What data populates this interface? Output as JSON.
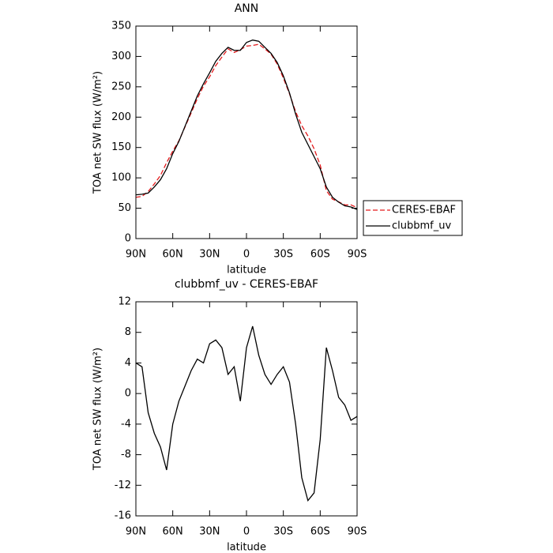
{
  "chart_data": [
    {
      "type": "line",
      "title": "ANN",
      "x_label": "latitude",
      "y_label": "TOA net SW flux (W/m²)",
      "x": [
        90,
        85,
        80,
        75,
        70,
        65,
        60,
        55,
        50,
        45,
        40,
        35,
        30,
        25,
        20,
        15,
        10,
        5,
        0,
        -5,
        -10,
        -15,
        -20,
        -25,
        -30,
        -35,
        -40,
        -45,
        -50,
        -55,
        -60,
        -65,
        -70,
        -75,
        -80,
        -85,
        -90
      ],
      "xlim": [
        90,
        -90
      ],
      "xticks": [
        {
          "value": 90,
          "label": "90N"
        },
        {
          "value": 60,
          "label": "60N"
        },
        {
          "value": 30,
          "label": "30N"
        },
        0,
        {
          "value": -30,
          "label": "30S"
        },
        {
          "value": -60,
          "label": "60S"
        },
        {
          "value": -90,
          "label": "90S"
        }
      ],
      "ylim": [
        0,
        350
      ],
      "yticks": [
        0,
        50,
        100,
        150,
        200,
        250,
        300,
        350
      ],
      "legend": "right",
      "series": [
        {
          "name": "CERES-EBAF",
          "color": "#e41a1c",
          "line_style": "dashed",
          "values": [
            68,
            69.5,
            77.5,
            90,
            104,
            125,
            144,
            161,
            184,
            207,
            230.5,
            251,
            266.5,
            285,
            299,
            312.5,
            306.5,
            311,
            317,
            318,
            320,
            312.5,
            303.8,
            287.5,
            264.5,
            238.5,
            209,
            186,
            169,
            148,
            121,
            79,
            65,
            60.5,
            55.5,
            55.5,
            51
          ]
        },
        {
          "name": "clubbmf_uv",
          "color": "#000000",
          "line_style": "solid",
          "values": [
            72,
            73,
            75,
            85,
            97,
            115,
            140,
            160,
            185,
            210,
            235,
            255,
            273,
            292,
            305,
            315,
            310,
            310,
            323,
            327,
            325,
            315,
            305,
            290,
            268,
            240,
            205,
            175,
            155,
            135,
            115,
            85,
            68,
            60,
            54,
            52,
            48
          ]
        }
      ]
    },
    {
      "type": "line",
      "title": "clubbmf_uv - CERES-EBAF",
      "x_label": "latitude",
      "y_label": "TOA net SW flux (W/m²)",
      "x": [
        90,
        85,
        80,
        75,
        70,
        65,
        60,
        55,
        50,
        45,
        40,
        35,
        30,
        25,
        20,
        15,
        10,
        5,
        0,
        -5,
        -10,
        -15,
        -20,
        -25,
        -30,
        -35,
        -40,
        -45,
        -50,
        -55,
        -60,
        -65,
        -70,
        -75,
        -80,
        -85,
        -90
      ],
      "xlim": [
        90,
        -90
      ],
      "xticks": [
        {
          "value": 90,
          "label": "90N"
        },
        {
          "value": 60,
          "label": "60N"
        },
        {
          "value": 30,
          "label": "30N"
        },
        0,
        {
          "value": -30,
          "label": "30S"
        },
        {
          "value": -60,
          "label": "60S"
        },
        {
          "value": -90,
          "label": "90S"
        }
      ],
      "ylim": [
        -16,
        12
      ],
      "yticks": [
        -16,
        -12,
        -8,
        -4,
        0,
        4,
        8,
        12
      ],
      "series": [
        {
          "color": "#000000",
          "line_style": "solid",
          "values": [
            4,
            3.5,
            -2.5,
            -5.2,
            -7,
            -10,
            -4,
            -1,
            1,
            3,
            4.5,
            4,
            6.5,
            7,
            6,
            2.5,
            3.5,
            -1,
            6,
            8.8,
            5,
            2.5,
            1.2,
            2.5,
            3.5,
            1.5,
            -4,
            -11,
            -14,
            -13,
            -6,
            6,
            3,
            -0.5,
            -1.5,
            -3.5,
            -3
          ]
        }
      ]
    }
  ]
}
